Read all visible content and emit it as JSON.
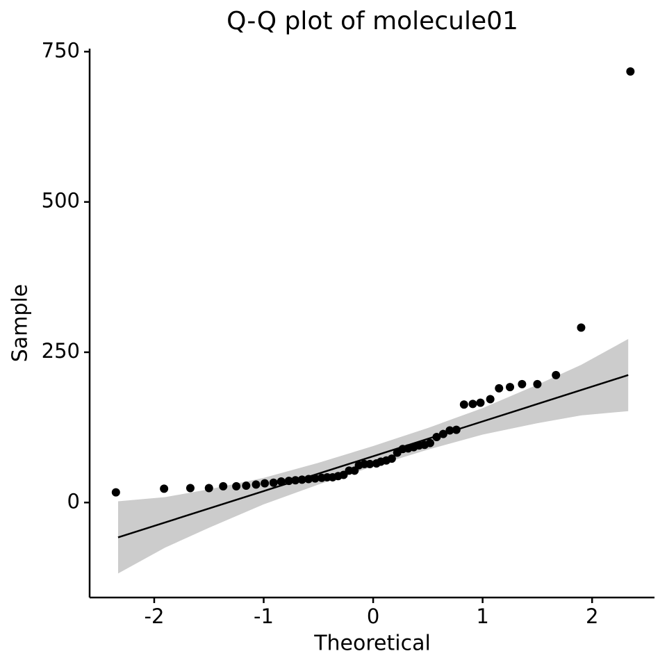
{
  "chart_data": {
    "type": "scatter",
    "title": "Q-Q plot of molecule01",
    "x_label": "Theoretical",
    "y_label": "Sample",
    "xlim": [
      -2.59,
      2.57
    ],
    "ylim": [
      -158,
      755
    ],
    "xticks": [
      -2,
      -1,
      0,
      1,
      2
    ],
    "yticks": [
      0,
      250,
      500,
      750
    ],
    "color": "#000000",
    "series": [
      {
        "x": [
          -2.35,
          -1.91,
          -1.67,
          -1.5,
          -1.37,
          -1.25,
          -1.16,
          -1.07,
          -0.99,
          -0.91,
          -0.84,
          -0.77,
          -0.71,
          -0.65,
          -0.59,
          -0.53,
          -0.47,
          -0.42,
          -0.37,
          -0.32,
          -0.27,
          -0.22,
          -0.17,
          -0.13,
          -0.08,
          -0.03,
          0.03,
          0.07,
          0.12,
          0.17,
          0.22,
          0.27,
          0.32,
          0.37,
          0.42,
          0.47,
          0.52,
          0.58,
          0.64,
          0.7,
          0.76,
          0.83,
          0.91,
          0.98,
          1.07,
          1.15,
          1.25,
          1.36,
          1.5,
          1.67,
          1.9,
          2.35
        ],
        "values": [
          17,
          23,
          24,
          24,
          27,
          27,
          28,
          30,
          32,
          33,
          35,
          36,
          37,
          38,
          39,
          40,
          41,
          42,
          42,
          44,
          46,
          53,
          53,
          62,
          64,
          64,
          65,
          68,
          70,
          73,
          83,
          89,
          90,
          92,
          95,
          96,
          99,
          109,
          114,
          120,
          121,
          163,
          164,
          166,
          172,
          190,
          192,
          197,
          197,
          212,
          291,
          717
        ]
      }
    ],
    "reference_line": {
      "color": "#000000",
      "x": [
        -2.33,
        2.33
      ],
      "values": [
        -58,
        212
      ]
    },
    "band": {
      "color": "#cccccc",
      "x": [
        -2.33,
        -1.9,
        -1.5,
        -1,
        -0.5,
        0,
        0.5,
        1,
        1.5,
        1.9,
        2.33
      ],
      "lower": [
        -118,
        -75,
        -42,
        -3,
        30,
        60,
        88,
        113,
        132,
        145,
        152
      ],
      "upper": [
        2,
        9,
        22,
        41,
        66,
        94,
        124,
        157,
        196,
        229,
        272
      ]
    }
  }
}
